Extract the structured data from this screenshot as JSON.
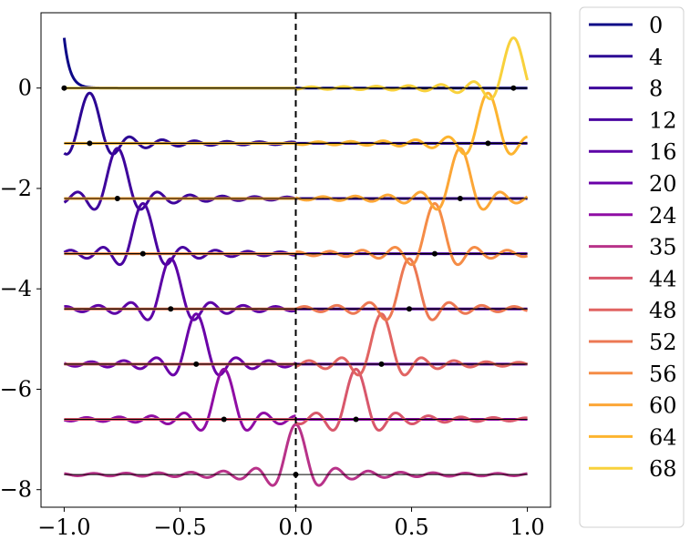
{
  "chart_data": {
    "type": "line",
    "title": "",
    "xlabel": "",
    "ylabel": "",
    "xlim": [
      -1.1,
      1.1
    ],
    "ylim": [
      -8.35,
      1.5
    ],
    "grid": false,
    "legend_placement": "outside-right",
    "xticks": [
      -1.0,
      -0.5,
      0.0,
      0.5,
      1.0
    ],
    "xtick_labels": [
      "−1.0",
      "−0.5",
      "0.0",
      "0.5",
      "1.0"
    ],
    "yticks": [
      0,
      -2,
      -4,
      -6,
      -8
    ],
    "ytick_labels": [
      "0",
      "−2",
      "−4",
      "−6",
      "−8"
    ],
    "vline": {
      "x": 0.0,
      "style": "dashed"
    },
    "series": [
      {
        "name": "0",
        "color": "#0d0887",
        "baseline": 0.0,
        "center": -1.0,
        "side": "left"
      },
      {
        "name": "4",
        "color": "#2c0594",
        "baseline": -1.1,
        "center": -0.89,
        "side": "left"
      },
      {
        "name": "8",
        "color": "#3e049c",
        "baseline": -2.2,
        "center": -0.77,
        "side": "left"
      },
      {
        "name": "12",
        "color": "#4903a0",
        "baseline": -3.3,
        "center": -0.66,
        "side": "left"
      },
      {
        "name": "16",
        "color": "#5c01a6",
        "baseline": -4.4,
        "center": -0.54,
        "side": "left"
      },
      {
        "name": "20",
        "color": "#6a00a8",
        "baseline": -5.5,
        "center": -0.43,
        "side": "left"
      },
      {
        "name": "24",
        "color": "#8f0da4",
        "baseline": -6.6,
        "center": -0.31,
        "side": "left"
      },
      {
        "name": "35",
        "color": "#b83289",
        "baseline": -7.7,
        "center": 0.0,
        "side": "both"
      },
      {
        "name": "44",
        "color": "#d8576b",
        "baseline": -6.6,
        "center": 0.26,
        "side": "right"
      },
      {
        "name": "48",
        "color": "#e16462",
        "baseline": -5.5,
        "center": 0.37,
        "side": "right"
      },
      {
        "name": "52",
        "color": "#ec7853",
        "baseline": -4.4,
        "center": 0.49,
        "side": "right"
      },
      {
        "name": "56",
        "color": "#f58c46",
        "baseline": -3.3,
        "center": 0.6,
        "side": "right"
      },
      {
        "name": "60",
        "color": "#fca636",
        "baseline": -2.2,
        "center": 0.71,
        "side": "right"
      },
      {
        "name": "64",
        "color": "#fdb42f",
        "baseline": -1.1,
        "center": 0.83,
        "side": "right"
      },
      {
        "name": "68",
        "color": "#f8d13c",
        "baseline": 0.0,
        "center": 0.94,
        "side": "right"
      }
    ]
  }
}
